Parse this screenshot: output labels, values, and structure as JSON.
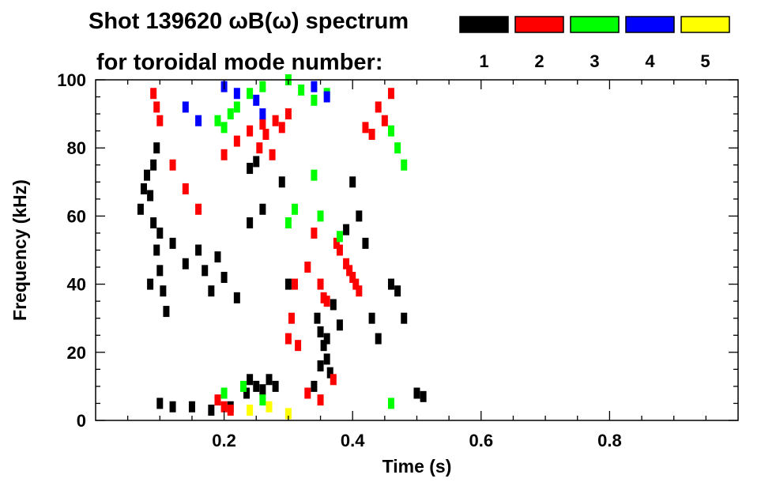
{
  "title_line1": "Shot 139620 ωB(ω) spectrum",
  "title_line2": "for toroidal mode number:",
  "chart_data": {
    "type": "scatter",
    "title": "Shot 139620 ωB(ω) spectrum for toroidal mode number:",
    "xlabel": "Time (s)",
    "ylabel": "Frequency (kHz)",
    "xlim": [
      0.0,
      1.0
    ],
    "ylim": [
      0,
      100
    ],
    "x_ticks": [
      0.2,
      0.4,
      0.6,
      0.8
    ],
    "x_tick_labels": [
      "0.2",
      "0.4",
      "0.6",
      "0.8"
    ],
    "y_ticks": [
      0,
      20,
      40,
      60,
      80,
      100
    ],
    "y_tick_labels": [
      "0",
      "20",
      "40",
      "60",
      "80",
      "100"
    ],
    "grid": false,
    "legend_placement": "top-right",
    "series": [
      {
        "name": "1",
        "color": "#000000",
        "points": [
          [
            0.07,
            62
          ],
          [
            0.075,
            68
          ],
          [
            0.08,
            72
          ],
          [
            0.085,
            66
          ],
          [
            0.09,
            58
          ],
          [
            0.095,
            50
          ],
          [
            0.1,
            44
          ],
          [
            0.105,
            38
          ],
          [
            0.11,
            32
          ],
          [
            0.1,
            55
          ],
          [
            0.09,
            75
          ],
          [
            0.095,
            80
          ],
          [
            0.085,
            40
          ],
          [
            0.12,
            52
          ],
          [
            0.14,
            46
          ],
          [
            0.16,
            50
          ],
          [
            0.17,
            44
          ],
          [
            0.18,
            38
          ],
          [
            0.19,
            48
          ],
          [
            0.2,
            42
          ],
          [
            0.22,
            36
          ],
          [
            0.24,
            58
          ],
          [
            0.26,
            62
          ],
          [
            0.25,
            76
          ],
          [
            0.24,
            74
          ],
          [
            0.235,
            8
          ],
          [
            0.24,
            12
          ],
          [
            0.25,
            10
          ],
          [
            0.26,
            9
          ],
          [
            0.27,
            12
          ],
          [
            0.28,
            10
          ],
          [
            0.29,
            70
          ],
          [
            0.3,
            40
          ],
          [
            0.345,
            30
          ],
          [
            0.35,
            26
          ],
          [
            0.355,
            22
          ],
          [
            0.36,
            18
          ],
          [
            0.365,
            14
          ],
          [
            0.34,
            10
          ],
          [
            0.35,
            16
          ],
          [
            0.36,
            24
          ],
          [
            0.37,
            34
          ],
          [
            0.38,
            28
          ],
          [
            0.39,
            56
          ],
          [
            0.4,
            70
          ],
          [
            0.41,
            60
          ],
          [
            0.42,
            52
          ],
          [
            0.43,
            30
          ],
          [
            0.44,
            24
          ],
          [
            0.46,
            40
          ],
          [
            0.47,
            38
          ],
          [
            0.48,
            30
          ],
          [
            0.5,
            8
          ],
          [
            0.51,
            7
          ],
          [
            0.1,
            5
          ],
          [
            0.12,
            4
          ],
          [
            0.15,
            4
          ],
          [
            0.18,
            3
          ],
          [
            0.21,
            4
          ]
        ]
      },
      {
        "name": "2",
        "color": "#ff0000",
        "points": [
          [
            0.09,
            96
          ],
          [
            0.095,
            92
          ],
          [
            0.1,
            88
          ],
          [
            0.2,
            78
          ],
          [
            0.22,
            82
          ],
          [
            0.24,
            85
          ],
          [
            0.26,
            87
          ],
          [
            0.28,
            88
          ],
          [
            0.3,
            90
          ],
          [
            0.255,
            80
          ],
          [
            0.275,
            78
          ],
          [
            0.265,
            84
          ],
          [
            0.29,
            86
          ],
          [
            0.31,
            40
          ],
          [
            0.305,
            30
          ],
          [
            0.3,
            24
          ],
          [
            0.315,
            22
          ],
          [
            0.33,
            45
          ],
          [
            0.34,
            55
          ],
          [
            0.35,
            40
          ],
          [
            0.355,
            36
          ],
          [
            0.36,
            35
          ],
          [
            0.375,
            52
          ],
          [
            0.38,
            50
          ],
          [
            0.39,
            46
          ],
          [
            0.395,
            44
          ],
          [
            0.4,
            42
          ],
          [
            0.405,
            40
          ],
          [
            0.41,
            38
          ],
          [
            0.42,
            86
          ],
          [
            0.43,
            84
          ],
          [
            0.44,
            92
          ],
          [
            0.45,
            88
          ],
          [
            0.46,
            96
          ],
          [
            0.12,
            75
          ],
          [
            0.14,
            68
          ],
          [
            0.16,
            62
          ],
          [
            0.2,
            4
          ],
          [
            0.19,
            6
          ],
          [
            0.21,
            3
          ],
          [
            0.33,
            8
          ],
          [
            0.35,
            6
          ],
          [
            0.37,
            12
          ]
        ]
      },
      {
        "name": "3",
        "color": "#00ff00",
        "points": [
          [
            0.19,
            88
          ],
          [
            0.2,
            86
          ],
          [
            0.21,
            90
          ],
          [
            0.22,
            92
          ],
          [
            0.24,
            96
          ],
          [
            0.26,
            98
          ],
          [
            0.3,
            100
          ],
          [
            0.32,
            97
          ],
          [
            0.34,
            94
          ],
          [
            0.36,
            96
          ],
          [
            0.31,
            62
          ],
          [
            0.3,
            58
          ],
          [
            0.34,
            72
          ],
          [
            0.35,
            60
          ],
          [
            0.38,
            54
          ],
          [
            0.46,
            85
          ],
          [
            0.47,
            80
          ],
          [
            0.48,
            75
          ],
          [
            0.2,
            8
          ],
          [
            0.23,
            10
          ],
          [
            0.26,
            6
          ],
          [
            0.46,
            5
          ]
        ]
      },
      {
        "name": "4",
        "color": "#0000ff",
        "points": [
          [
            0.14,
            92
          ],
          [
            0.16,
            88
          ],
          [
            0.2,
            98
          ],
          [
            0.22,
            96
          ],
          [
            0.25,
            94
          ],
          [
            0.26,
            90
          ],
          [
            0.34,
            98
          ],
          [
            0.36,
            95
          ]
        ]
      },
      {
        "name": "5",
        "color": "#ffff00",
        "points": [
          [
            0.24,
            3
          ],
          [
            0.27,
            4
          ],
          [
            0.3,
            2
          ]
        ]
      }
    ]
  }
}
